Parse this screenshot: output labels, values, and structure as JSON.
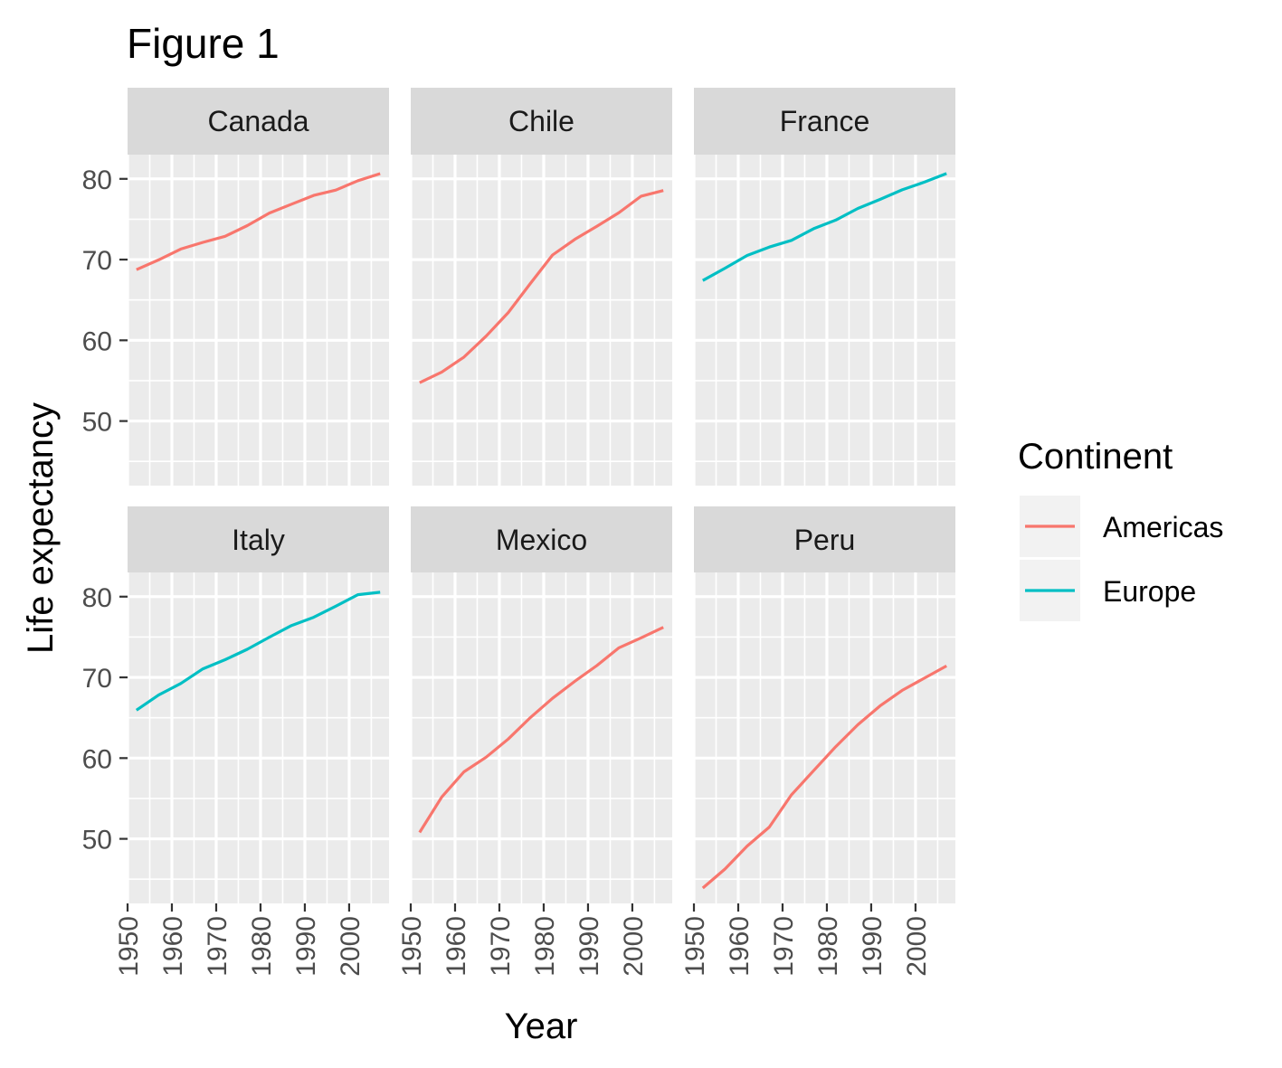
{
  "title": "Figure 1",
  "chart_data": {
    "type": "line",
    "facet": "country",
    "xlabel": "Year",
    "ylabel": "Life expectancy",
    "xlim": [
      1950,
      2009
    ],
    "ylim": [
      42,
      83
    ],
    "x_ticks": [
      1950,
      1960,
      1970,
      1980,
      1990,
      2000
    ],
    "y_ticks": [
      50,
      60,
      70,
      80
    ],
    "grid": true,
    "legend": {
      "title": "Continent",
      "placement": "right",
      "items": [
        {
          "label": "Americas",
          "color": "#F8766D"
        },
        {
          "label": "Europe",
          "color": "#00BFC4"
        }
      ]
    },
    "x": [
      1952,
      1957,
      1962,
      1967,
      1972,
      1977,
      1982,
      1987,
      1992,
      1997,
      2002,
      2007
    ],
    "panels": [
      {
        "country": "Canada",
        "continent": "Americas",
        "values": [
          68.75,
          69.96,
          71.3,
          72.13,
          72.88,
          74.21,
          75.76,
          76.86,
          77.95,
          78.61,
          79.77,
          80.65
        ]
      },
      {
        "country": "Chile",
        "continent": "Americas",
        "values": [
          54.75,
          56.07,
          57.92,
          60.52,
          63.44,
          67.05,
          70.57,
          72.49,
          74.13,
          75.82,
          77.86,
          78.55
        ]
      },
      {
        "country": "France",
        "continent": "Europe",
        "values": [
          67.41,
          68.93,
          70.51,
          71.55,
          72.38,
          73.83,
          74.89,
          76.34,
          77.46,
          78.64,
          79.59,
          80.66
        ]
      },
      {
        "country": "Italy",
        "continent": "Europe",
        "values": [
          65.94,
          67.81,
          69.24,
          71.06,
          72.19,
          73.48,
          74.98,
          76.42,
          77.44,
          78.82,
          80.24,
          80.55
        ]
      },
      {
        "country": "Mexico",
        "continent": "Americas",
        "values": [
          50.79,
          55.19,
          58.3,
          60.11,
          62.36,
          65.03,
          67.41,
          69.5,
          71.46,
          73.67,
          74.9,
          76.2
        ]
      },
      {
        "country": "Peru",
        "continent": "Americas",
        "values": [
          43.9,
          46.26,
          49.1,
          51.45,
          55.45,
          58.45,
          61.41,
          64.13,
          66.46,
          68.39,
          69.91,
          71.42
        ]
      }
    ]
  }
}
